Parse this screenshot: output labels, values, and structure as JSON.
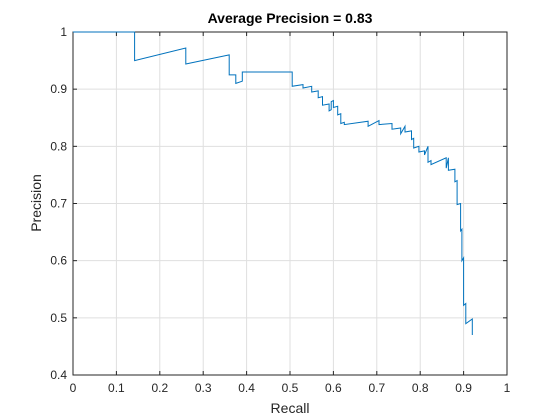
{
  "chart_data": {
    "type": "line",
    "title": "Average Precision = 0.83",
    "xlabel": "Recall",
    "ylabel": "Precision",
    "xlim": [
      0,
      1
    ],
    "ylim": [
      0.4,
      1
    ],
    "xticks": [
      "0",
      "0.1",
      "0.2",
      "0.3",
      "0.4",
      "0.5",
      "0.6",
      "0.7",
      "0.8",
      "0.9",
      "1"
    ],
    "yticks": [
      "0.4",
      "0.5",
      "0.6",
      "0.7",
      "0.8",
      "0.9",
      "1"
    ],
    "grid": true,
    "line_color": "#0072bd",
    "series": [
      {
        "x": [
          0.0,
          0.142,
          0.142,
          0.26,
          0.26,
          0.36,
          0.36,
          0.375,
          0.375,
          0.39,
          0.39,
          0.505,
          0.505,
          0.53,
          0.53,
          0.55,
          0.55,
          0.565,
          0.565,
          0.575,
          0.575,
          0.59,
          0.59,
          0.595,
          0.595,
          0.6,
          0.6,
          0.61,
          0.61,
          0.617,
          0.617,
          0.625,
          0.625,
          0.68,
          0.68,
          0.705,
          0.705,
          0.735,
          0.735,
          0.755,
          0.755,
          0.765,
          0.765,
          0.78,
          0.78,
          0.785,
          0.785,
          0.797,
          0.797,
          0.81,
          0.81,
          0.818,
          0.818,
          0.825,
          0.825,
          0.86,
          0.86,
          0.865,
          0.865,
          0.88,
          0.88,
          0.885,
          0.885,
          0.893,
          0.893,
          0.896,
          0.896,
          0.9,
          0.9,
          0.905,
          0.905,
          0.92,
          0.92
        ],
        "y": [
          1.0,
          1.0,
          0.95,
          0.972,
          0.944,
          0.96,
          0.925,
          0.925,
          0.91,
          0.914,
          0.93,
          0.93,
          0.905,
          0.908,
          0.902,
          0.905,
          0.895,
          0.897,
          0.885,
          0.887,
          0.872,
          0.874,
          0.862,
          0.864,
          0.878,
          0.88,
          0.868,
          0.87,
          0.855,
          0.857,
          0.84,
          0.842,
          0.838,
          0.844,
          0.835,
          0.845,
          0.838,
          0.84,
          0.83,
          0.832,
          0.822,
          0.835,
          0.825,
          0.827,
          0.812,
          0.814,
          0.797,
          0.8,
          0.79,
          0.792,
          0.785,
          0.8,
          0.772,
          0.775,
          0.768,
          0.78,
          0.762,
          0.78,
          0.758,
          0.76,
          0.738,
          0.74,
          0.698,
          0.7,
          0.652,
          0.655,
          0.6,
          0.605,
          0.522,
          0.525,
          0.49,
          0.498,
          0.47
        ]
      }
    ]
  }
}
